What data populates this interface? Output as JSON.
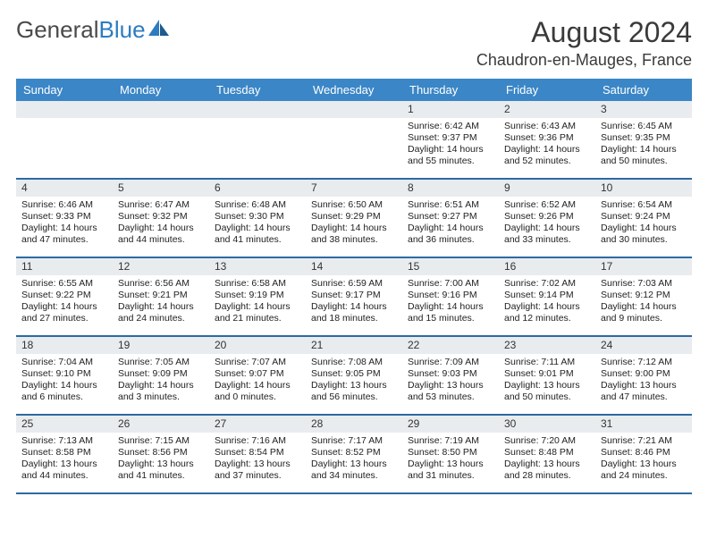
{
  "logo": {
    "text1": "General",
    "text2": "Blue"
  },
  "title": "August 2024",
  "location": "Chaudron-en-Mauges, France",
  "colors": {
    "header_bg": "#3b86c6",
    "daynum_bg": "#e9ecef",
    "week_border": "#2d6aa3",
    "logo_gray": "#4a4a4a",
    "logo_blue": "#2d7cc0"
  },
  "daysOfWeek": [
    "Sunday",
    "Monday",
    "Tuesday",
    "Wednesday",
    "Thursday",
    "Friday",
    "Saturday"
  ],
  "weeks": [
    [
      null,
      null,
      null,
      null,
      {
        "n": "1",
        "sr": "Sunrise: 6:42 AM",
        "ss": "Sunset: 9:37 PM",
        "d1": "Daylight: 14 hours",
        "d2": "and 55 minutes."
      },
      {
        "n": "2",
        "sr": "Sunrise: 6:43 AM",
        "ss": "Sunset: 9:36 PM",
        "d1": "Daylight: 14 hours",
        "d2": "and 52 minutes."
      },
      {
        "n": "3",
        "sr": "Sunrise: 6:45 AM",
        "ss": "Sunset: 9:35 PM",
        "d1": "Daylight: 14 hours",
        "d2": "and 50 minutes."
      }
    ],
    [
      {
        "n": "4",
        "sr": "Sunrise: 6:46 AM",
        "ss": "Sunset: 9:33 PM",
        "d1": "Daylight: 14 hours",
        "d2": "and 47 minutes."
      },
      {
        "n": "5",
        "sr": "Sunrise: 6:47 AM",
        "ss": "Sunset: 9:32 PM",
        "d1": "Daylight: 14 hours",
        "d2": "and 44 minutes."
      },
      {
        "n": "6",
        "sr": "Sunrise: 6:48 AM",
        "ss": "Sunset: 9:30 PM",
        "d1": "Daylight: 14 hours",
        "d2": "and 41 minutes."
      },
      {
        "n": "7",
        "sr": "Sunrise: 6:50 AM",
        "ss": "Sunset: 9:29 PM",
        "d1": "Daylight: 14 hours",
        "d2": "and 38 minutes."
      },
      {
        "n": "8",
        "sr": "Sunrise: 6:51 AM",
        "ss": "Sunset: 9:27 PM",
        "d1": "Daylight: 14 hours",
        "d2": "and 36 minutes."
      },
      {
        "n": "9",
        "sr": "Sunrise: 6:52 AM",
        "ss": "Sunset: 9:26 PM",
        "d1": "Daylight: 14 hours",
        "d2": "and 33 minutes."
      },
      {
        "n": "10",
        "sr": "Sunrise: 6:54 AM",
        "ss": "Sunset: 9:24 PM",
        "d1": "Daylight: 14 hours",
        "d2": "and 30 minutes."
      }
    ],
    [
      {
        "n": "11",
        "sr": "Sunrise: 6:55 AM",
        "ss": "Sunset: 9:22 PM",
        "d1": "Daylight: 14 hours",
        "d2": "and 27 minutes."
      },
      {
        "n": "12",
        "sr": "Sunrise: 6:56 AM",
        "ss": "Sunset: 9:21 PM",
        "d1": "Daylight: 14 hours",
        "d2": "and 24 minutes."
      },
      {
        "n": "13",
        "sr": "Sunrise: 6:58 AM",
        "ss": "Sunset: 9:19 PM",
        "d1": "Daylight: 14 hours",
        "d2": "and 21 minutes."
      },
      {
        "n": "14",
        "sr": "Sunrise: 6:59 AM",
        "ss": "Sunset: 9:17 PM",
        "d1": "Daylight: 14 hours",
        "d2": "and 18 minutes."
      },
      {
        "n": "15",
        "sr": "Sunrise: 7:00 AM",
        "ss": "Sunset: 9:16 PM",
        "d1": "Daylight: 14 hours",
        "d2": "and 15 minutes."
      },
      {
        "n": "16",
        "sr": "Sunrise: 7:02 AM",
        "ss": "Sunset: 9:14 PM",
        "d1": "Daylight: 14 hours",
        "d2": "and 12 minutes."
      },
      {
        "n": "17",
        "sr": "Sunrise: 7:03 AM",
        "ss": "Sunset: 9:12 PM",
        "d1": "Daylight: 14 hours",
        "d2": "and 9 minutes."
      }
    ],
    [
      {
        "n": "18",
        "sr": "Sunrise: 7:04 AM",
        "ss": "Sunset: 9:10 PM",
        "d1": "Daylight: 14 hours",
        "d2": "and 6 minutes."
      },
      {
        "n": "19",
        "sr": "Sunrise: 7:05 AM",
        "ss": "Sunset: 9:09 PM",
        "d1": "Daylight: 14 hours",
        "d2": "and 3 minutes."
      },
      {
        "n": "20",
        "sr": "Sunrise: 7:07 AM",
        "ss": "Sunset: 9:07 PM",
        "d1": "Daylight: 14 hours",
        "d2": "and 0 minutes."
      },
      {
        "n": "21",
        "sr": "Sunrise: 7:08 AM",
        "ss": "Sunset: 9:05 PM",
        "d1": "Daylight: 13 hours",
        "d2": "and 56 minutes."
      },
      {
        "n": "22",
        "sr": "Sunrise: 7:09 AM",
        "ss": "Sunset: 9:03 PM",
        "d1": "Daylight: 13 hours",
        "d2": "and 53 minutes."
      },
      {
        "n": "23",
        "sr": "Sunrise: 7:11 AM",
        "ss": "Sunset: 9:01 PM",
        "d1": "Daylight: 13 hours",
        "d2": "and 50 minutes."
      },
      {
        "n": "24",
        "sr": "Sunrise: 7:12 AM",
        "ss": "Sunset: 9:00 PM",
        "d1": "Daylight: 13 hours",
        "d2": "and 47 minutes."
      }
    ],
    [
      {
        "n": "25",
        "sr": "Sunrise: 7:13 AM",
        "ss": "Sunset: 8:58 PM",
        "d1": "Daylight: 13 hours",
        "d2": "and 44 minutes."
      },
      {
        "n": "26",
        "sr": "Sunrise: 7:15 AM",
        "ss": "Sunset: 8:56 PM",
        "d1": "Daylight: 13 hours",
        "d2": "and 41 minutes."
      },
      {
        "n": "27",
        "sr": "Sunrise: 7:16 AM",
        "ss": "Sunset: 8:54 PM",
        "d1": "Daylight: 13 hours",
        "d2": "and 37 minutes."
      },
      {
        "n": "28",
        "sr": "Sunrise: 7:17 AM",
        "ss": "Sunset: 8:52 PM",
        "d1": "Daylight: 13 hours",
        "d2": "and 34 minutes."
      },
      {
        "n": "29",
        "sr": "Sunrise: 7:19 AM",
        "ss": "Sunset: 8:50 PM",
        "d1": "Daylight: 13 hours",
        "d2": "and 31 minutes."
      },
      {
        "n": "30",
        "sr": "Sunrise: 7:20 AM",
        "ss": "Sunset: 8:48 PM",
        "d1": "Daylight: 13 hours",
        "d2": "and 28 minutes."
      },
      {
        "n": "31",
        "sr": "Sunrise: 7:21 AM",
        "ss": "Sunset: 8:46 PM",
        "d1": "Daylight: 13 hours",
        "d2": "and 24 minutes."
      }
    ]
  ]
}
